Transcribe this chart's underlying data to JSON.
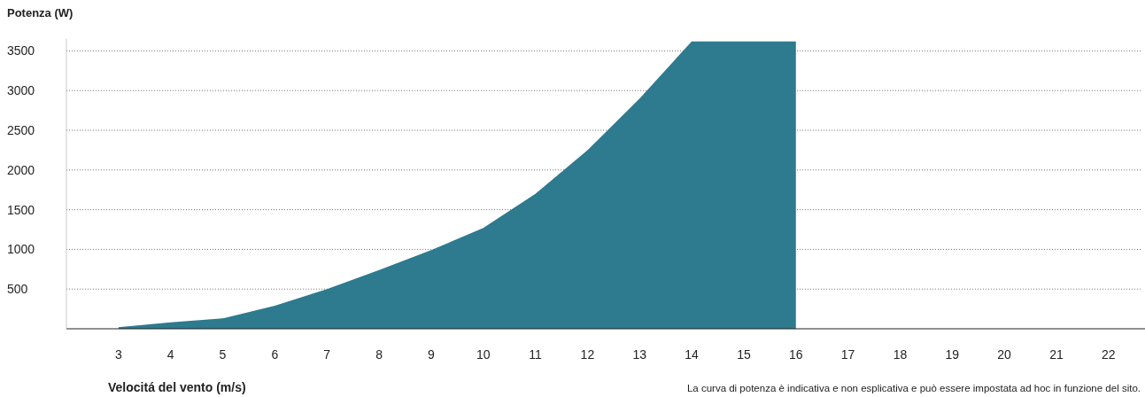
{
  "chart_data": {
    "type": "area",
    "ylabel": "Potenza (W)",
    "xlabel": "Velocitá del vento (m/s)",
    "annotations": [
      "La curva di potenza è indicativa e non esplicativa e può essere impostata ad hoc in funzione del sito."
    ],
    "x": [
      3,
      4,
      5,
      6,
      7,
      8,
      9,
      10,
      11,
      12,
      13,
      14,
      15,
      16
    ],
    "series": [
      {
        "color": "#2e7a8f",
        "values": [
          20,
          80,
          130,
          290,
          500,
          740,
          990,
          1270,
          1700,
          2250,
          2900,
          3620,
          3620,
          3620
        ]
      }
    ],
    "xlim": [
      2,
      22.7
    ],
    "xticks": [
      3,
      4,
      5,
      6,
      7,
      8,
      9,
      10,
      11,
      12,
      13,
      14,
      15,
      16,
      17,
      18,
      19,
      20,
      21,
      22
    ],
    "ylim": [
      0,
      3650
    ],
    "yticks": [
      500,
      1000,
      1500,
      2000,
      2500,
      3000,
      3500
    ],
    "grid": "y"
  }
}
